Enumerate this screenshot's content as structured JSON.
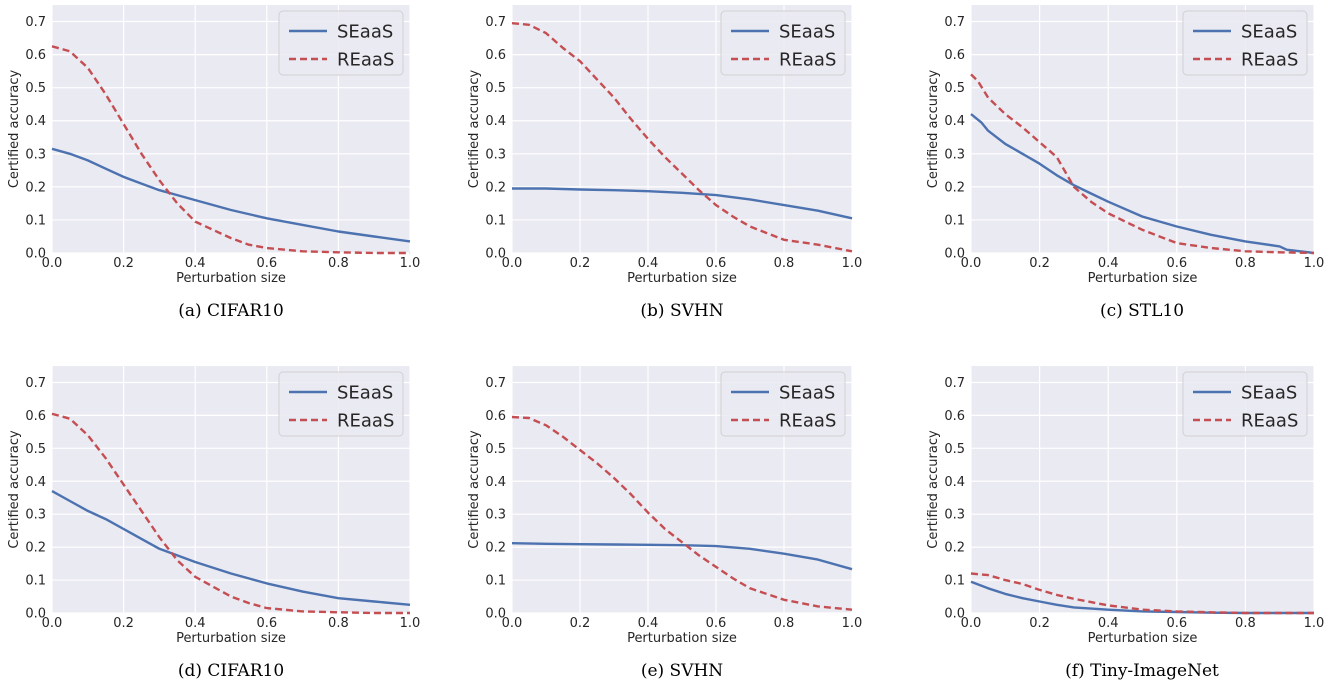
{
  "figure": {
    "colors": {
      "SEaaS": "#4c72b0",
      "REaaS": "#c44e52",
      "panel_bg": "#eaeaf2",
      "grid": "#ffffff"
    }
  },
  "chart_data": [
    {
      "type": "line",
      "caption": "(a) CIFAR10",
      "xlabel": "Perturbation size",
      "ylabel": "Certified accuracy",
      "xlim": [
        0,
        1.0
      ],
      "ylim": [
        0,
        0.75
      ],
      "xticks": [
        "0.0",
        "0.2",
        "0.4",
        "0.6",
        "0.8",
        "1.0"
      ],
      "yticks": [
        "0.0",
        "0.1",
        "0.2",
        "0.3",
        "0.4",
        "0.5",
        "0.6",
        "0.7"
      ],
      "grid": true,
      "legend": "top-right",
      "series": [
        {
          "name": "SEaaS",
          "style": "solid",
          "x": [
            0,
            0.05,
            0.1,
            0.15,
            0.2,
            0.25,
            0.3,
            0.35,
            0.4,
            0.5,
            0.6,
            0.7,
            0.8,
            0.9,
            1.0
          ],
          "y": [
            0.315,
            0.3,
            0.28,
            0.255,
            0.23,
            0.21,
            0.19,
            0.175,
            0.16,
            0.13,
            0.105,
            0.085,
            0.065,
            0.05,
            0.035
          ]
        },
        {
          "name": "REaaS",
          "style": "dashed",
          "x": [
            0,
            0.05,
            0.1,
            0.15,
            0.2,
            0.25,
            0.3,
            0.35,
            0.4,
            0.45,
            0.5,
            0.55,
            0.6,
            0.7,
            0.8,
            0.9,
            1.0
          ],
          "y": [
            0.625,
            0.61,
            0.56,
            0.48,
            0.39,
            0.3,
            0.22,
            0.15,
            0.095,
            0.07,
            0.045,
            0.025,
            0.015,
            0.005,
            0.002,
            0.0,
            0.0
          ]
        }
      ]
    },
    {
      "type": "line",
      "caption": "(b) SVHN",
      "xlabel": "Perturbation size",
      "ylabel": "Certified accuracy",
      "xlim": [
        0,
        1.0
      ],
      "ylim": [
        0,
        0.75
      ],
      "xticks": [
        "0.0",
        "0.2",
        "0.4",
        "0.6",
        "0.8",
        "1.0"
      ],
      "yticks": [
        "0.0",
        "0.1",
        "0.2",
        "0.3",
        "0.4",
        "0.5",
        "0.6",
        "0.7"
      ],
      "grid": true,
      "legend": "top-right",
      "series": [
        {
          "name": "SEaaS",
          "style": "solid",
          "x": [
            0,
            0.1,
            0.2,
            0.3,
            0.4,
            0.5,
            0.6,
            0.7,
            0.8,
            0.9,
            1.0
          ],
          "y": [
            0.195,
            0.195,
            0.192,
            0.19,
            0.187,
            0.182,
            0.175,
            0.162,
            0.145,
            0.128,
            0.105
          ]
        },
        {
          "name": "REaaS",
          "style": "dashed",
          "x": [
            0,
            0.05,
            0.1,
            0.15,
            0.2,
            0.25,
            0.3,
            0.35,
            0.4,
            0.45,
            0.5,
            0.55,
            0.6,
            0.65,
            0.7,
            0.8,
            0.9,
            1.0
          ],
          "y": [
            0.695,
            0.69,
            0.665,
            0.62,
            0.58,
            0.525,
            0.47,
            0.405,
            0.345,
            0.29,
            0.24,
            0.19,
            0.145,
            0.11,
            0.08,
            0.04,
            0.025,
            0.005
          ]
        }
      ]
    },
    {
      "type": "line",
      "caption": "(c) STL10",
      "xlabel": "Perturbation size",
      "ylabel": "Certified accuracy",
      "xlim": [
        0,
        1.0
      ],
      "ylim": [
        0,
        0.75
      ],
      "xticks": [
        "0.0",
        "0.2",
        "0.4",
        "0.6",
        "0.8",
        "1.0"
      ],
      "yticks": [
        "0.0",
        "0.1",
        "0.2",
        "0.3",
        "0.4",
        "0.5",
        "0.6",
        "0.7"
      ],
      "grid": true,
      "legend": "top-right",
      "series": [
        {
          "name": "SEaaS",
          "style": "solid",
          "x": [
            0,
            0.03,
            0.05,
            0.1,
            0.15,
            0.2,
            0.25,
            0.3,
            0.35,
            0.4,
            0.5,
            0.6,
            0.7,
            0.8,
            0.9,
            0.92,
            1.0
          ],
          "y": [
            0.42,
            0.395,
            0.37,
            0.33,
            0.3,
            0.27,
            0.235,
            0.205,
            0.18,
            0.155,
            0.11,
            0.08,
            0.055,
            0.035,
            0.02,
            0.01,
            0.0
          ]
        },
        {
          "name": "REaaS",
          "style": "dashed",
          "x": [
            0,
            0.02,
            0.05,
            0.1,
            0.15,
            0.2,
            0.25,
            0.3,
            0.35,
            0.4,
            0.5,
            0.6,
            0.7,
            0.8,
            0.9,
            1.0
          ],
          "y": [
            0.54,
            0.52,
            0.47,
            0.42,
            0.38,
            0.335,
            0.29,
            0.2,
            0.155,
            0.12,
            0.07,
            0.03,
            0.015,
            0.005,
            0.002,
            0.0
          ]
        }
      ]
    },
    {
      "type": "line",
      "caption": "(d) CIFAR10",
      "xlabel": "Perturbation size",
      "ylabel": "Certified accuracy",
      "xlim": [
        0,
        1.0
      ],
      "ylim": [
        0,
        0.75
      ],
      "xticks": [
        "0.0",
        "0.2",
        "0.4",
        "0.6",
        "0.8",
        "1.0"
      ],
      "yticks": [
        "0.0",
        "0.1",
        "0.2",
        "0.3",
        "0.4",
        "0.5",
        "0.6",
        "0.7"
      ],
      "grid": true,
      "legend": "top-right",
      "series": [
        {
          "name": "SEaaS",
          "style": "solid",
          "x": [
            0,
            0.05,
            0.1,
            0.15,
            0.2,
            0.25,
            0.3,
            0.35,
            0.4,
            0.5,
            0.6,
            0.7,
            0.8,
            0.9,
            1.0
          ],
          "y": [
            0.37,
            0.34,
            0.31,
            0.285,
            0.255,
            0.225,
            0.195,
            0.175,
            0.155,
            0.12,
            0.09,
            0.065,
            0.045,
            0.035,
            0.025
          ]
        },
        {
          "name": "REaaS",
          "style": "dashed",
          "x": [
            0,
            0.05,
            0.1,
            0.15,
            0.2,
            0.25,
            0.3,
            0.35,
            0.4,
            0.45,
            0.5,
            0.55,
            0.6,
            0.7,
            0.8,
            0.9,
            1.0
          ],
          "y": [
            0.605,
            0.59,
            0.54,
            0.47,
            0.39,
            0.31,
            0.23,
            0.16,
            0.11,
            0.08,
            0.05,
            0.03,
            0.015,
            0.005,
            0.002,
            0.0,
            0.0
          ]
        }
      ]
    },
    {
      "type": "line",
      "caption": "(e) SVHN",
      "xlabel": "Perturbation size",
      "ylabel": "Certified accuracy",
      "xlim": [
        0,
        1.0
      ],
      "ylim": [
        0,
        0.75
      ],
      "xticks": [
        "0.0",
        "0.2",
        "0.4",
        "0.6",
        "0.8",
        "1.0"
      ],
      "yticks": [
        "0.0",
        "0.1",
        "0.2",
        "0.3",
        "0.4",
        "0.5",
        "0.6",
        "0.7"
      ],
      "grid": true,
      "legend": "top-right",
      "series": [
        {
          "name": "SEaaS",
          "style": "solid",
          "x": [
            0,
            0.1,
            0.2,
            0.3,
            0.4,
            0.5,
            0.6,
            0.7,
            0.8,
            0.9,
            1.0
          ],
          "y": [
            0.212,
            0.21,
            0.209,
            0.208,
            0.207,
            0.206,
            0.203,
            0.195,
            0.18,
            0.162,
            0.133
          ]
        },
        {
          "name": "REaaS",
          "style": "dashed",
          "x": [
            0,
            0.05,
            0.1,
            0.15,
            0.2,
            0.25,
            0.3,
            0.35,
            0.4,
            0.45,
            0.5,
            0.55,
            0.6,
            0.65,
            0.7,
            0.8,
            0.9,
            1.0
          ],
          "y": [
            0.595,
            0.592,
            0.57,
            0.535,
            0.495,
            0.455,
            0.41,
            0.36,
            0.305,
            0.255,
            0.215,
            0.175,
            0.14,
            0.105,
            0.075,
            0.04,
            0.02,
            0.01
          ]
        }
      ]
    },
    {
      "type": "line",
      "caption": "(f) Tiny-ImageNet",
      "xlabel": "Perturbation size",
      "ylabel": "Certified accuracy",
      "xlim": [
        0,
        1.0
      ],
      "ylim": [
        0,
        0.75
      ],
      "xticks": [
        "0.0",
        "0.2",
        "0.4",
        "0.6",
        "0.8",
        "1.0"
      ],
      "yticks": [
        "0.0",
        "0.1",
        "0.2",
        "0.3",
        "0.4",
        "0.5",
        "0.6",
        "0.7"
      ],
      "grid": true,
      "legend": "top-right",
      "series": [
        {
          "name": "SEaaS",
          "style": "solid",
          "x": [
            0,
            0.05,
            0.1,
            0.15,
            0.2,
            0.25,
            0.3,
            0.4,
            0.5,
            0.6,
            0.7,
            0.8,
            0.9,
            1.0
          ],
          "y": [
            0.095,
            0.075,
            0.058,
            0.045,
            0.035,
            0.025,
            0.017,
            0.01,
            0.005,
            0.003,
            0.001,
            0.0,
            0.0,
            0.0
          ]
        },
        {
          "name": "REaaS",
          "style": "dashed",
          "x": [
            0,
            0.05,
            0.1,
            0.15,
            0.2,
            0.25,
            0.3,
            0.35,
            0.4,
            0.5,
            0.6,
            0.7,
            0.8,
            0.9,
            1.0
          ],
          "y": [
            0.12,
            0.115,
            0.1,
            0.088,
            0.07,
            0.055,
            0.043,
            0.033,
            0.023,
            0.01,
            0.005,
            0.002,
            0.0,
            0.0,
            0.0
          ]
        }
      ]
    }
  ]
}
